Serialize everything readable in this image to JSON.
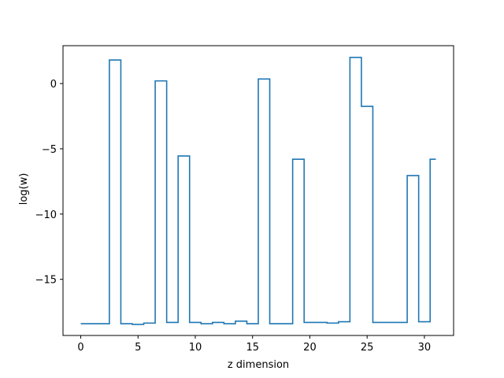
{
  "chart_data": {
    "type": "line",
    "drawstyle": "steps-mid",
    "xlabel": "z dimension",
    "ylabel": "log(w)",
    "xlim": [
      -1.55,
      32.55
    ],
    "ylim": [
      -19.3,
      2.9
    ],
    "xticks": [
      0,
      5,
      10,
      15,
      20,
      25,
      30
    ],
    "yticks": [
      0,
      -5,
      -10,
      -15
    ],
    "grid": false,
    "series": [
      {
        "color": "#1f77b4",
        "x": [
          0,
          1,
          2,
          3,
          4,
          5,
          6,
          7,
          8,
          9,
          10,
          11,
          12,
          13,
          14,
          15,
          16,
          17,
          18,
          19,
          20,
          21,
          22,
          23,
          24,
          25,
          26,
          27,
          28,
          29,
          30,
          31
        ],
        "y": [
          -18.4,
          -18.4,
          -18.4,
          1.8,
          -18.4,
          -18.45,
          -18.35,
          0.2,
          -18.3,
          -5.55,
          -18.3,
          -18.4,
          -18.3,
          -18.4,
          -18.2,
          -18.4,
          0.35,
          -18.4,
          -18.4,
          -5.8,
          -18.3,
          -18.3,
          -18.35,
          -18.25,
          2.0,
          -1.75,
          -18.3,
          -18.3,
          -18.3,
          -7.05,
          -18.25,
          -5.8
        ]
      }
    ]
  }
}
